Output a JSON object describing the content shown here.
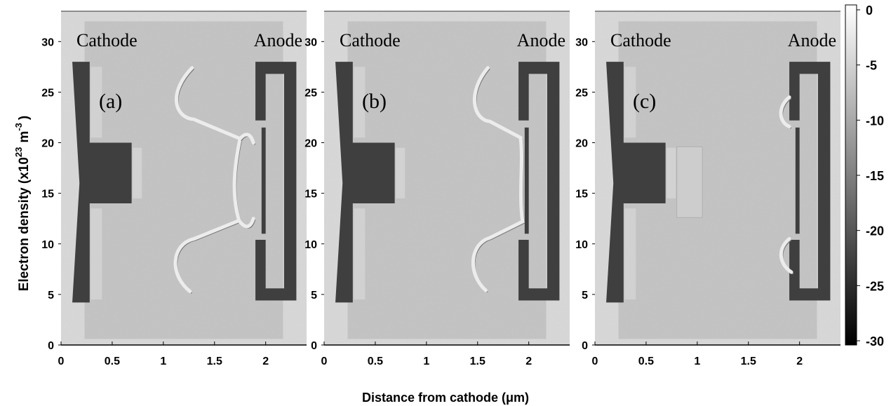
{
  "figure": {
    "ylabel": "Electron density (x10",
    "ylabel_exp": "23",
    "ylabel_unit": "m",
    "ylabel_unit_exp": "-3",
    "ylabel_close": ")",
    "xlabel": "Distance from cathode (μm)"
  },
  "chart_data": [
    {
      "type": "heatmap",
      "panel_label": "(a)",
      "left_label": "Cathode",
      "right_label": "Anode",
      "xlim": [
        0,
        2.4
      ],
      "ylim": [
        0,
        33
      ],
      "xticks": [
        0,
        0.5,
        1,
        1.5,
        2
      ],
      "xtick_labels": [
        "0",
        "0.5",
        "1",
        "1.5",
        "2"
      ],
      "yticks": [
        0,
        5,
        10,
        15,
        20,
        25,
        30
      ],
      "ytick_labels": [
        "0",
        "5",
        "10",
        "15",
        "20",
        "25",
        "30"
      ],
      "depletion_front": "full"
    },
    {
      "type": "heatmap",
      "panel_label": "(b)",
      "left_label": "Cathode",
      "right_label": "Anode",
      "xlim": [
        0,
        2.4
      ],
      "ylim": [
        0,
        33
      ],
      "xticks": [
        0,
        0.5,
        1,
        1.5,
        2
      ],
      "xtick_labels": [
        "0",
        "0.5",
        "1",
        "1.5",
        "2"
      ],
      "yticks": [
        0,
        5,
        10,
        15,
        20,
        25,
        30
      ],
      "ytick_labels": [
        "0",
        "5",
        "10",
        "15",
        "20",
        "25",
        "30"
      ],
      "depletion_front": "touching-anode"
    },
    {
      "type": "heatmap",
      "panel_label": "(c)",
      "left_label": "Cathode",
      "right_label": "Anode",
      "xlim": [
        0,
        2.4
      ],
      "ylim": [
        0,
        33
      ],
      "xticks": [
        0,
        0.5,
        1,
        1.5,
        2
      ],
      "xtick_labels": [
        "0",
        "0.5",
        "1",
        "1.5",
        "2"
      ],
      "yticks": [
        0,
        5,
        10,
        15,
        20,
        25,
        30
      ],
      "ytick_labels": [
        "0",
        "5",
        "10",
        "15",
        "20",
        "25",
        "30"
      ],
      "depletion_front": "detached"
    }
  ],
  "colorbar": {
    "range": [
      -30,
      0
    ],
    "ticks": [
      0,
      -5,
      -10,
      -15,
      -20,
      -25,
      -30
    ],
    "tick_labels": [
      "0",
      "-5",
      "-10",
      "-15",
      "-20",
      "-25",
      "-30"
    ],
    "colormap": "gray"
  }
}
